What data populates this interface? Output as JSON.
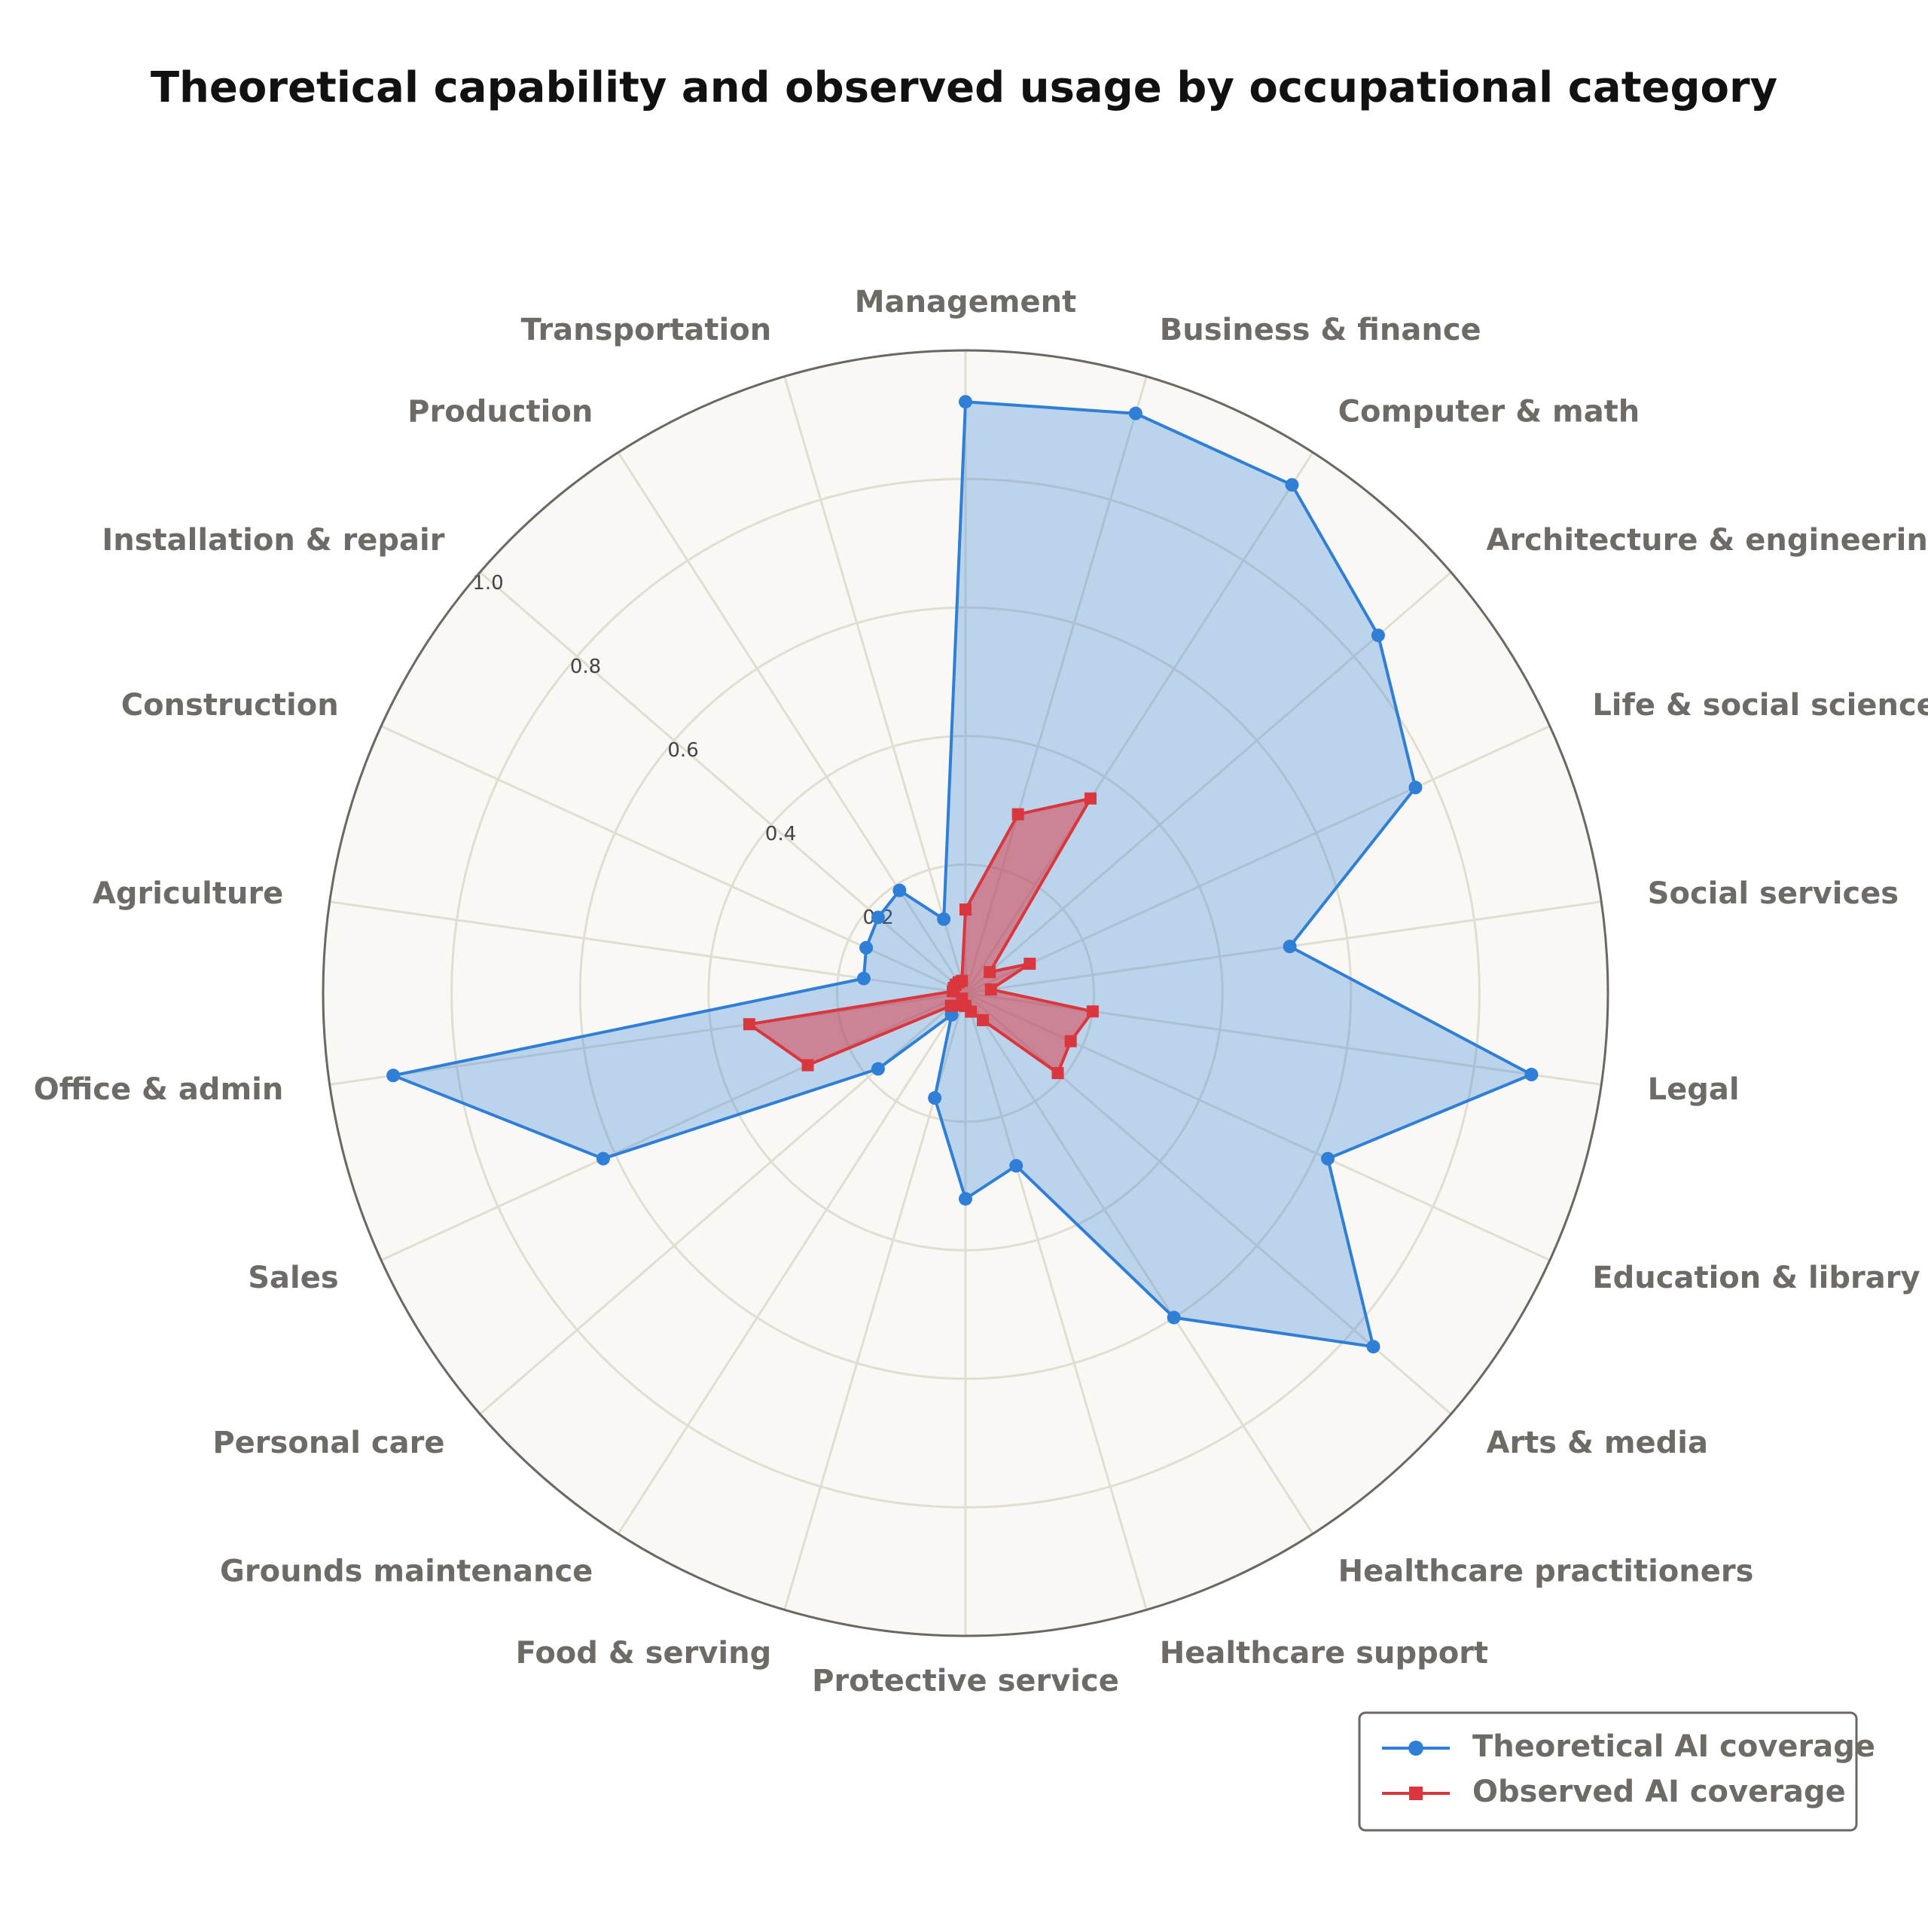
{
  "chart_data": {
    "type": "radar",
    "title": "Theoretical capability and observed usage by occupational category",
    "categories": [
      "Management",
      "Business & finance",
      "Computer & math",
      "Architecture & engineering",
      "Life & social sciences",
      "Social services",
      "Legal",
      "Education & library",
      "Arts & media",
      "Healthcare practitioners",
      "Healthcare support",
      "Protective service",
      "Food & serving",
      "Grounds maintenance",
      "Personal care",
      "Sales",
      "Office & admin",
      "Agriculture",
      "Construction",
      "Installation & repair",
      "Production",
      "Transportation"
    ],
    "series": [
      {
        "name": "Theoretical AI coverage",
        "color": "#2f7fd6",
        "marker": "circle",
        "values": [
          0.92,
          0.94,
          0.94,
          0.85,
          0.77,
          0.51,
          0.89,
          0.62,
          0.84,
          0.6,
          0.28,
          0.32,
          0.17,
          0.04,
          0.18,
          0.62,
          0.9,
          0.16,
          0.17,
          0.18,
          0.19,
          0.12
        ]
      },
      {
        "name": "Observed AI coverage",
        "color": "#d9363e",
        "marker": "square",
        "values": [
          0.13,
          0.29,
          0.36,
          0.05,
          0.11,
          0.04,
          0.2,
          0.18,
          0.19,
          0.05,
          0.03,
          0.02,
          0.02,
          0.01,
          0.03,
          0.27,
          0.34,
          0.02,
          0.02,
          0.02,
          0.02,
          0.02
        ]
      }
    ],
    "rlim": [
      0,
      1
    ],
    "rticks": [
      0.2,
      0.4,
      0.6,
      0.8,
      {
        "value": 1,
        "label": "1.0"
      }
    ],
    "grid": true,
    "legend": "lower right"
  }
}
